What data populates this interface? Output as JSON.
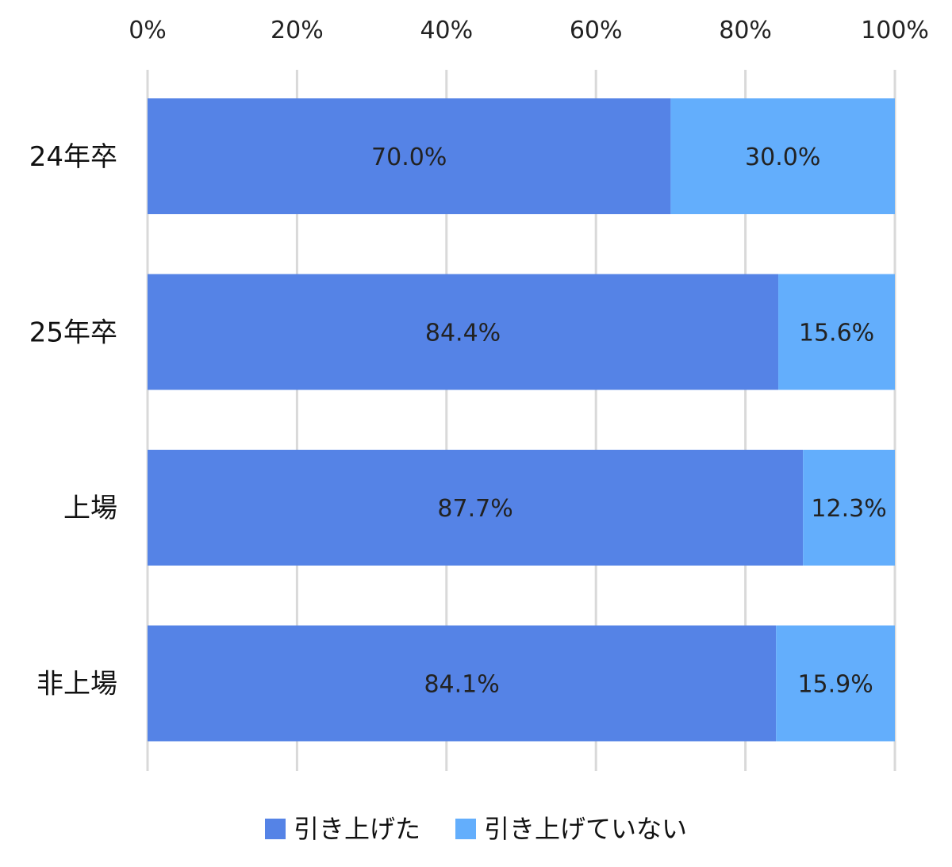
{
  "chart_data": {
    "type": "bar",
    "orientation": "horizontal",
    "stacked": true,
    "percent": true,
    "categories": [
      "24年卒",
      "25年卒",
      "上場",
      "非上場"
    ],
    "series": [
      {
        "name": "引き上げた",
        "values": [
          70.0,
          84.4,
          87.7,
          84.1
        ],
        "labels": [
          "70.0%",
          "84.4%",
          "87.7%",
          "84.1%"
        ],
        "color": "#5583e6"
      },
      {
        "name": "引き上げていない",
        "values": [
          30.0,
          15.6,
          12.3,
          15.9
        ],
        "labels": [
          "30.0%",
          "15.6%",
          "12.3%",
          "15.9%"
        ],
        "color": "#63aefc"
      }
    ],
    "xlim": [
      0,
      100
    ],
    "xticks": [
      0,
      20,
      40,
      60,
      80,
      100
    ],
    "xtick_labels": [
      "0%",
      "20%",
      "40%",
      "60%",
      "80%",
      "100%"
    ],
    "xaxis_position": "top",
    "grid": true,
    "grid_color": "#d9d9d9",
    "legend_position": "bottom",
    "title": "",
    "xlabel": "",
    "ylabel": ""
  }
}
